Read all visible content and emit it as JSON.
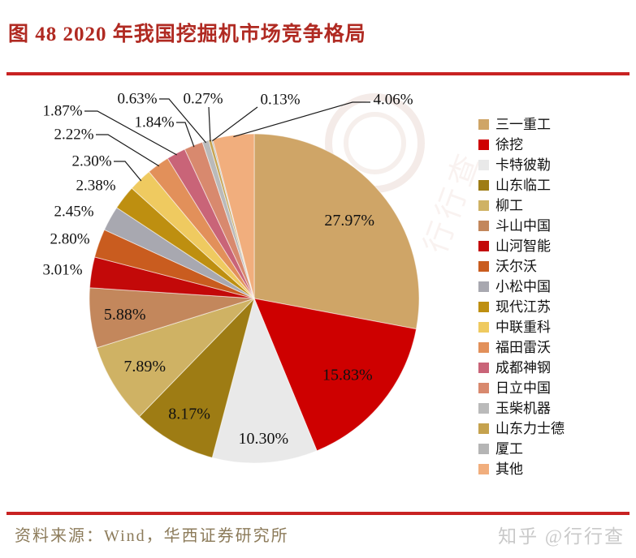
{
  "title": "图 48  2020 年我国挖掘机市场竞争格局",
  "footer": {
    "source": "资料来源：Wind，华西证券研究所",
    "credit": "知乎 @行行查"
  },
  "watermark": {
    "brand": "行行查"
  },
  "colors": {
    "title": "#B02A22",
    "rule": "#C82222",
    "source_text": "#8C7B5A",
    "credit_text": "#C9C9C9",
    "label_text": "#111111"
  },
  "chart_data": {
    "type": "pie",
    "title": "2020 年我国挖掘机市场竞争格局",
    "start_angle_deg": 0,
    "direction": "clockwise",
    "legend_position": "right",
    "label_format": "percent_2dp",
    "total": 100.0,
    "series": [
      {
        "name": "三一重工",
        "value": 27.97,
        "color": "#CFA567"
      },
      {
        "name": "徐挖",
        "value": 15.83,
        "color": "#CE0000"
      },
      {
        "name": "卡特彼勒",
        "value": 10.3,
        "color": "#E9E9E9"
      },
      {
        "name": "山东临工",
        "value": 8.17,
        "color": "#9E7C14"
      },
      {
        "name": "柳工",
        "value": 7.89,
        "color": "#CFB264"
      },
      {
        "name": "斗山中国",
        "value": 5.88,
        "color": "#C3875C"
      },
      {
        "name": "山河智能",
        "value": 3.01,
        "color": "#C30909"
      },
      {
        "name": "沃尔沃",
        "value": 2.8,
        "color": "#C95C1F"
      },
      {
        "name": "小松中国",
        "value": 2.45,
        "color": "#A8A8B0"
      },
      {
        "name": "现代江苏",
        "value": 2.38,
        "color": "#BE8F10"
      },
      {
        "name": "中联重科",
        "value": 2.3,
        "color": "#EFCA60"
      },
      {
        "name": "福田雷沃",
        "value": 2.22,
        "color": "#E2905A"
      },
      {
        "name": "成都神钢",
        "value": 1.87,
        "color": "#C96478"
      },
      {
        "name": "日立中国",
        "value": 1.84,
        "color": "#D8896E"
      },
      {
        "name": "玉柴机器",
        "value": 0.63,
        "color": "#BABABA"
      },
      {
        "name": "山东力士德",
        "value": 0.27,
        "color": "#C5A24E"
      },
      {
        "name": "厦工",
        "value": 0.13,
        "color": "#B5B5B5"
      },
      {
        "name": "其他",
        "value": 4.06,
        "color": "#F1AE7D"
      }
    ]
  }
}
